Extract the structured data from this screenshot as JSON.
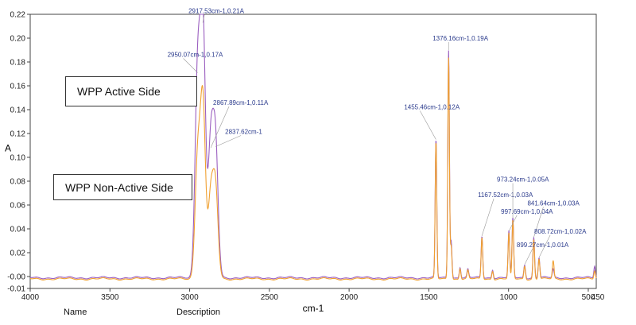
{
  "chart_data": {
    "type": "line",
    "xlabel": "cm-1",
    "ylabel": "A",
    "xlim": [
      4000,
      450
    ],
    "ylim": [
      -0.01,
      0.22
    ],
    "x_ticks": [
      4000,
      3500,
      3000,
      2500,
      2000,
      1500,
      1000,
      500
    ],
    "x_tick_labels": [
      "4000",
      "3500",
      "3000",
      "2500",
      "2000",
      "1500",
      "1000",
      "500"
    ],
    "x_end_label": "450",
    "y_ticks": [
      -0.01,
      0.0,
      0.02,
      0.04,
      0.06,
      0.08,
      0.1,
      0.12,
      0.14,
      0.16,
      0.18,
      0.2,
      0.22
    ],
    "y_tick_labels": [
      "-0.01",
      "-0.00",
      "0.02",
      "0.04",
      "0.06",
      "0.08",
      "0.10",
      "0.12",
      "0.14",
      "0.16",
      "0.18",
      "0.20",
      "0.22"
    ],
    "series": [
      {
        "color": "#9b5fc0",
        "peaks": [
          [
            2950,
            0.171
          ],
          [
            2917,
            0.213
          ],
          [
            2868,
            0.108
          ],
          [
            2838,
            0.109
          ],
          [
            1455,
            0.115
          ],
          [
            1376,
            0.19
          ],
          [
            1360,
            0.03
          ],
          [
            1304,
            0.008
          ],
          [
            1255,
            0.006
          ],
          [
            1167,
            0.034
          ],
          [
            1100,
            0.006
          ],
          [
            998,
            0.038
          ],
          [
            973,
            0.049
          ],
          [
            899,
            0.01
          ],
          [
            842,
            0.033
          ],
          [
            809,
            0.016
          ],
          [
            720,
            0.006
          ],
          [
            460,
            0.009
          ]
        ],
        "baseline": -0.001
      },
      {
        "color": "#f0a030",
        "peaks": [
          [
            2950,
            0.098
          ],
          [
            2917,
            0.145
          ],
          [
            2868,
            0.065
          ],
          [
            2838,
            0.072
          ],
          [
            1455,
            0.113
          ],
          [
            1376,
            0.184
          ],
          [
            1360,
            0.026
          ],
          [
            1304,
            0.007
          ],
          [
            1255,
            0.005
          ],
          [
            1167,
            0.033
          ],
          [
            1100,
            0.005
          ],
          [
            998,
            0.036
          ],
          [
            973,
            0.047
          ],
          [
            899,
            0.009
          ],
          [
            842,
            0.031
          ],
          [
            809,
            0.015
          ],
          [
            720,
            0.013
          ],
          [
            460,
            0.005
          ]
        ],
        "baseline": -0.002
      }
    ],
    "annotations": [
      {
        "text": "2917.53cm-1,0.21A",
        "x": 2917.53,
        "y": 0.213
      },
      {
        "text": "2950.07cm-1,0.17A",
        "x": 2950.07,
        "y": 0.171
      },
      {
        "text": "2867.89cm-1,0.11A",
        "x": 2867.89,
        "y": 0.108
      },
      {
        "text": "2837.62cm-1",
        "x": 2837.62,
        "y": 0.109
      },
      {
        "text": "1455.46cm-1,0.12A",
        "x": 1455.46,
        "y": 0.115
      },
      {
        "text": "1376.16cm-1,0.19A",
        "x": 1376.16,
        "y": 0.19
      },
      {
        "text": "1167.52cm-1,0.03A",
        "x": 1167.52,
        "y": 0.034
      },
      {
        "text": "973.24cm-1,0.05A",
        "x": 973.24,
        "y": 0.049
      },
      {
        "text": "997.69cm-1,0.04A",
        "x": 997.69,
        "y": 0.038
      },
      {
        "text": "841.64cm-1,0.03A",
        "x": 841.64,
        "y": 0.033
      },
      {
        "text": "899.27cm-1,0.01A",
        "x": 899.27,
        "y": 0.01
      },
      {
        "text": "808.72cm-1,0.02A",
        "x": 808.72,
        "y": 0.016
      }
    ],
    "grid": false
  },
  "legend": {
    "active_side": "WPP Active Side",
    "non_active_side": "WPP Non-Active Side"
  },
  "footer": {
    "name_header": "Name",
    "description_header": "Description"
  }
}
